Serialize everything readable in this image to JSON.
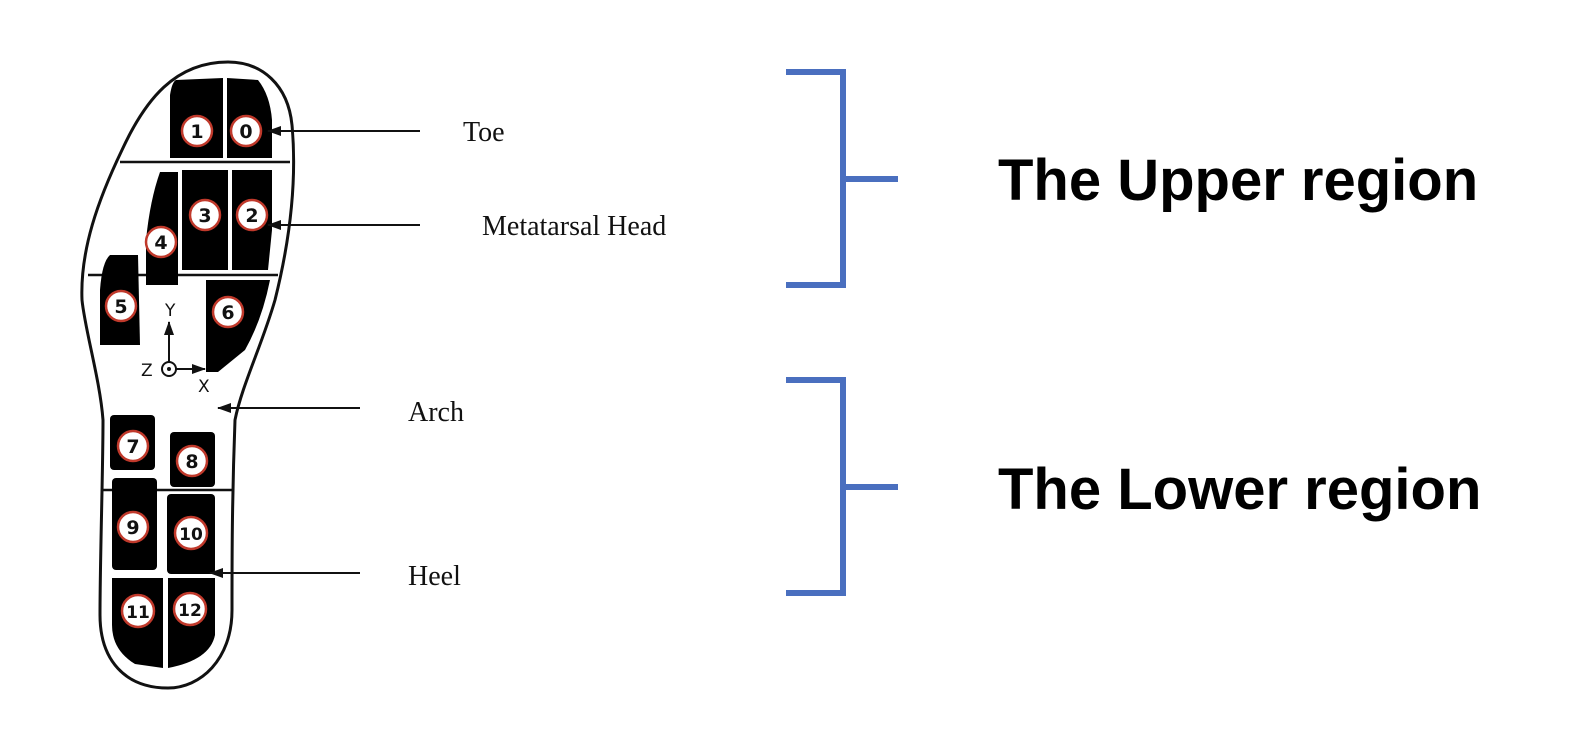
{
  "foot": {
    "labels": {
      "toe": "Toe",
      "metatarsal_head": "Metatarsal Head",
      "arch": "Arch",
      "heel": "Heel"
    },
    "axes": {
      "x": "X",
      "y": "Y",
      "z": "Z"
    },
    "sensors": [
      "0",
      "1",
      "2",
      "3",
      "4",
      "5",
      "6",
      "7",
      "8",
      "9",
      "10",
      "11",
      "12"
    ]
  },
  "regions": {
    "upper": "The Upper region",
    "lower": "The Lower region"
  },
  "colors": {
    "bracket": "#4a6fbf",
    "pad": "#000000",
    "outline": "#111111"
  }
}
